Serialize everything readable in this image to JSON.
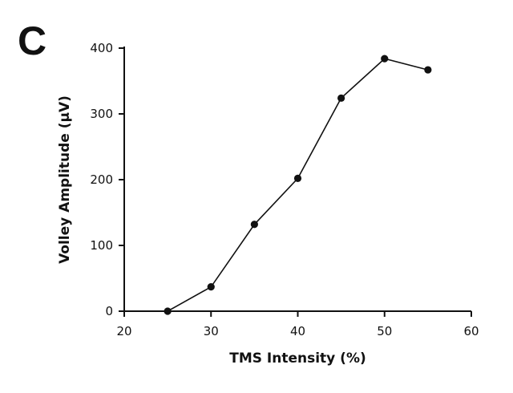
{
  "panel_label": "C",
  "chart_data": {
    "type": "line",
    "xlabel": "TMS Intensity (%)",
    "ylabel": "Volley Amplitude (µV)",
    "xlim": [
      20,
      60
    ],
    "ylim": [
      0,
      400
    ],
    "xticks": [
      20,
      30,
      40,
      50,
      60
    ],
    "yticks": [
      0,
      100,
      200,
      300,
      400
    ],
    "grid": false,
    "series": [
      {
        "x": [
          25,
          30,
          35,
          40,
          45,
          50,
          55
        ],
        "y": [
          0,
          37,
          132,
          202,
          324,
          384,
          367
        ],
        "color": "#111111",
        "marker": "circle"
      }
    ],
    "baseline": {
      "y": 0,
      "x_from": 20,
      "x_to": 25
    }
  }
}
